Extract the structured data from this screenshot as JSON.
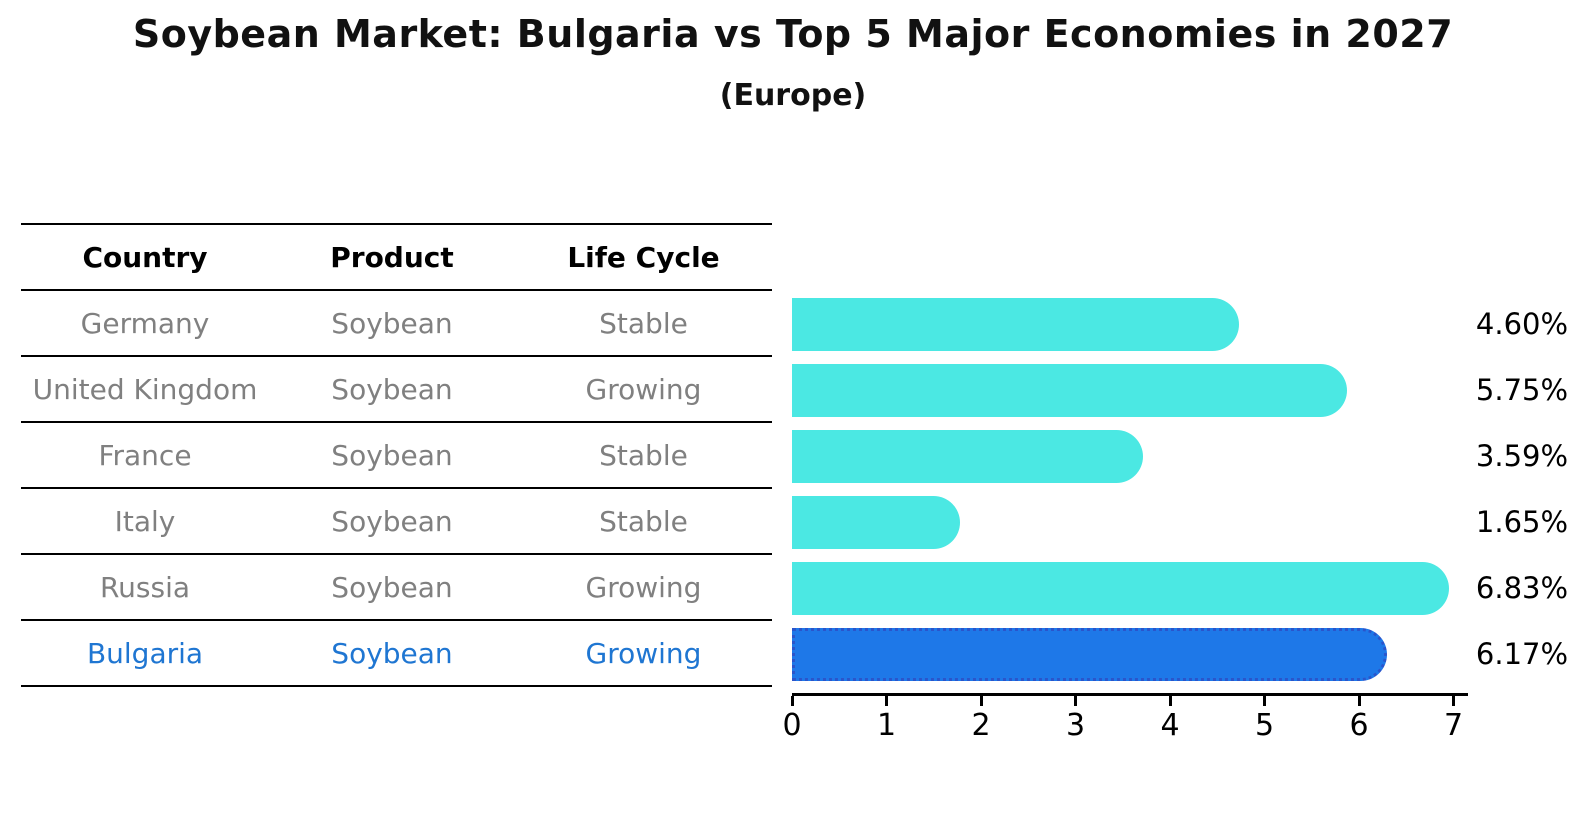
{
  "title": "Soybean Market: Bulgaria vs Top 5 Major Economies in 2027",
  "subtitle": "(Europe)",
  "table": {
    "headers": [
      "Country",
      "Product",
      "Life Cycle"
    ],
    "rows": [
      {
        "country": "Germany",
        "product": "Soybean",
        "life_cycle": "Stable",
        "highlight": false
      },
      {
        "country": "United Kingdom",
        "product": "Soybean",
        "life_cycle": "Growing",
        "highlight": false
      },
      {
        "country": "France",
        "product": "Soybean",
        "life_cycle": "Stable",
        "highlight": false
      },
      {
        "country": "Italy",
        "product": "Soybean",
        "life_cycle": "Stable",
        "highlight": false
      },
      {
        "country": "Russia",
        "product": "Soybean",
        "life_cycle": "Growing",
        "highlight": false
      },
      {
        "country": "Bulgaria",
        "product": "Soybean",
        "life_cycle": "Growing",
        "highlight": true
      }
    ]
  },
  "chart_data": {
    "type": "bar",
    "orientation": "horizontal",
    "title": "Soybean Market: Bulgaria vs Top 5 Major Economies in 2027",
    "subtitle": "(Europe)",
    "categories": [
      "Germany",
      "United Kingdom",
      "France",
      "Italy",
      "Russia",
      "Bulgaria"
    ],
    "values": [
      4.6,
      5.75,
      3.59,
      1.65,
      6.83,
      6.17
    ],
    "value_labels": [
      "4.60%",
      "5.75%",
      "3.59%",
      "1.65%",
      "6.83%",
      "6.17%"
    ],
    "xlim": [
      0,
      7
    ],
    "x_ticks": [
      "0",
      "1",
      "2",
      "3",
      "4",
      "5",
      "6",
      "7"
    ],
    "grid": false,
    "legend": false,
    "highlight_index": 5
  },
  "colors": {
    "bar": "#4BE8E3",
    "highlight_bar": "#1E78E8",
    "highlight_border": "#2A55CB",
    "highlight_text": "#1F76D2",
    "row_text": "#808080",
    "header_text": "#000000",
    "axis": "#000000"
  }
}
